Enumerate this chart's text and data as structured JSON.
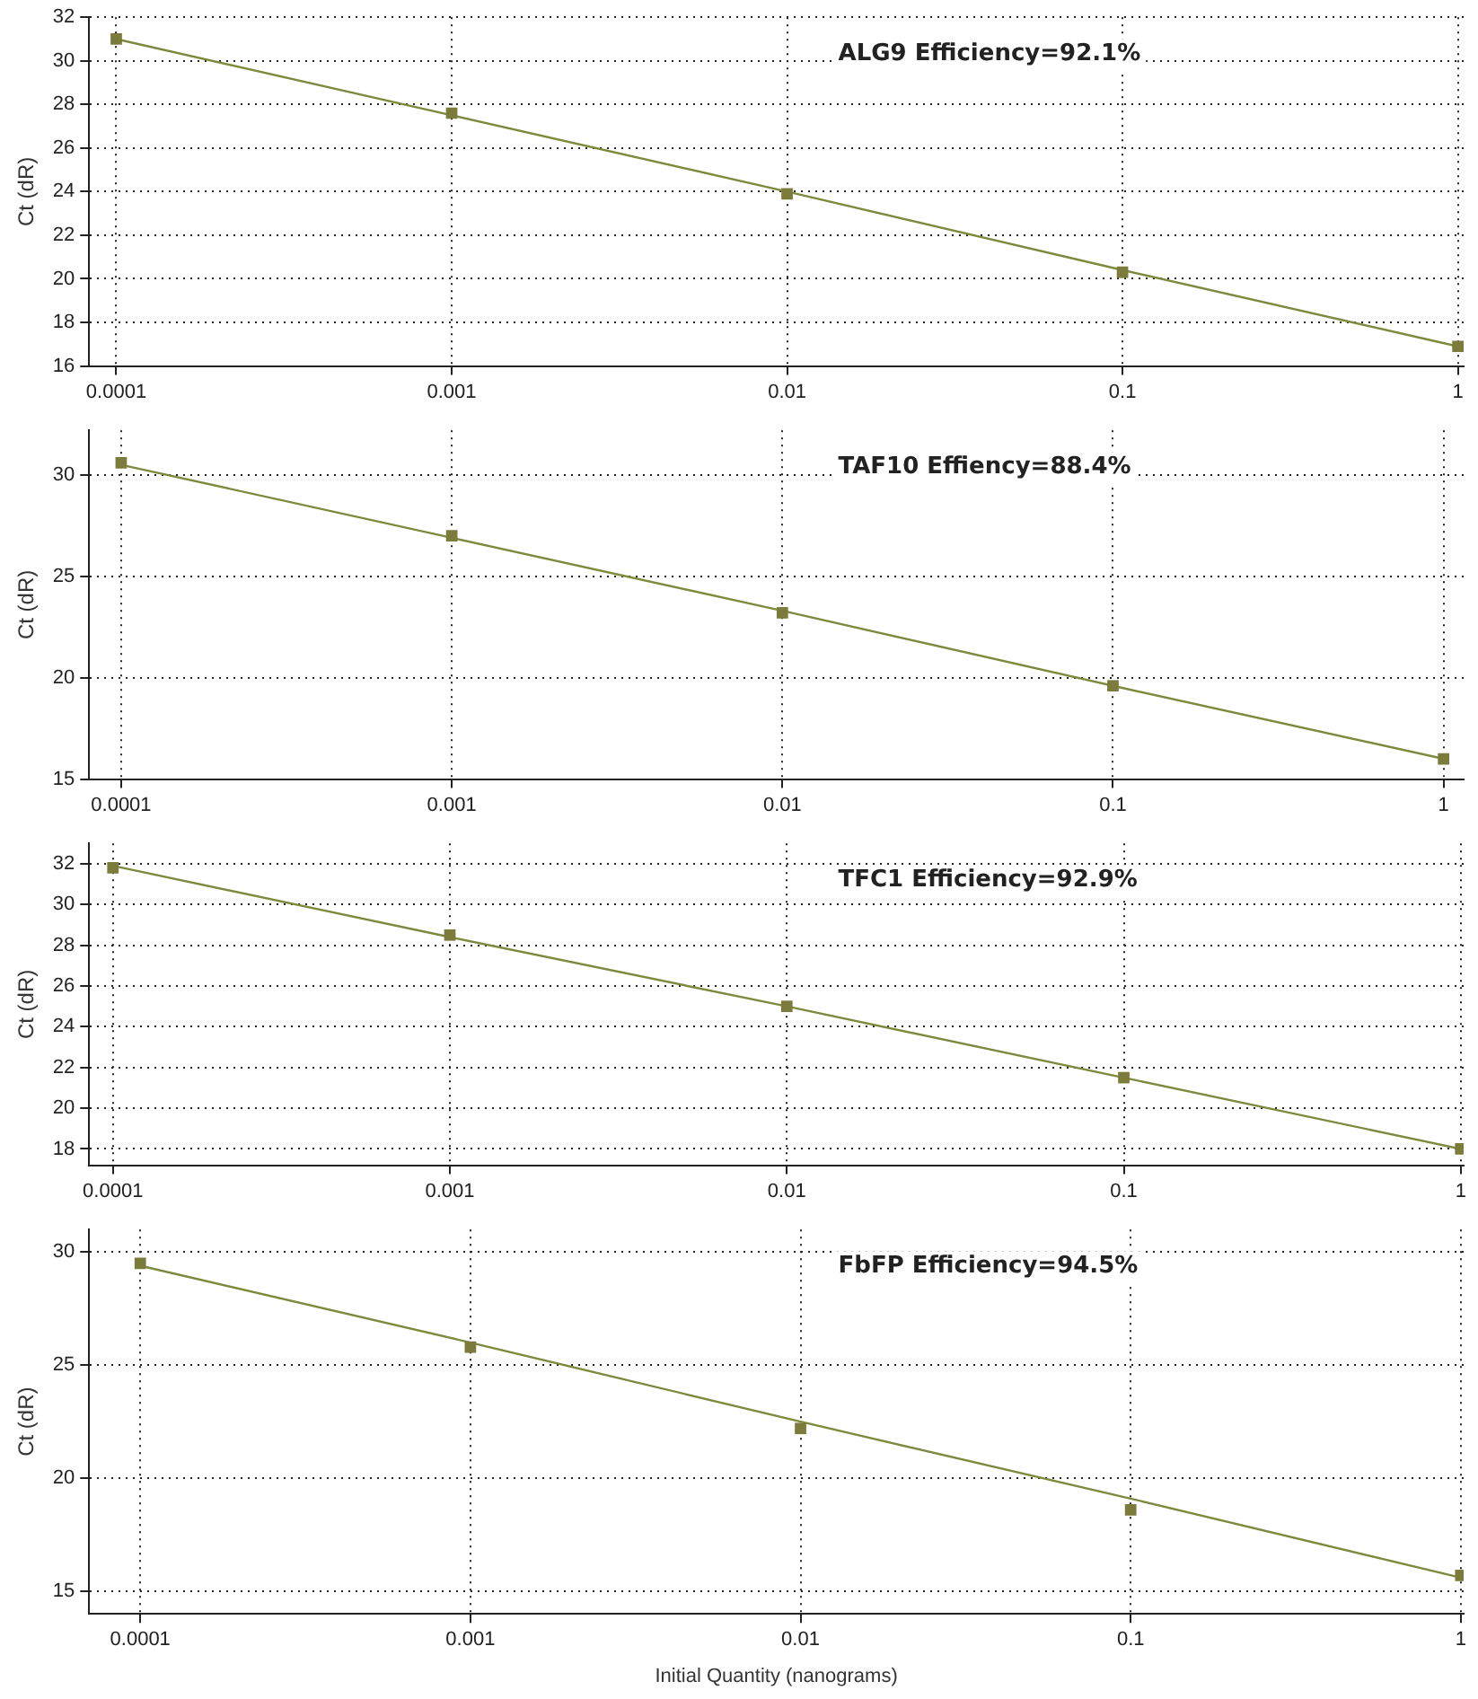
{
  "chart_data": [
    {
      "type": "scatter",
      "ylabel": "Ct (dR)",
      "annotations": [
        "ALG9 Efficiency=92.1%"
      ],
      "x": [
        0.0001,
        0.001,
        0.01,
        0.1,
        1
      ],
      "series": [
        {
          "type": "scatter",
          "color": "#7b7b3c",
          "marker": "square",
          "values": [
            31.0,
            27.6,
            23.9,
            20.3,
            16.9
          ]
        },
        {
          "type": "line",
          "color": "#7c8a3e",
          "marker": "none",
          "values": [
            31.0,
            27.5,
            24.0,
            20.4,
            16.9
          ]
        }
      ],
      "log": "x",
      "xlim": [
        8.3e-05,
        1.04
      ],
      "xticks": [
        0.0001,
        0.001,
        0.01,
        0.1,
        1
      ],
      "ylim": [
        16,
        32
      ],
      "yticks": [
        16,
        18,
        20,
        22,
        24,
        26,
        28,
        30,
        32
      ],
      "grid": true,
      "legend": false
    },
    {
      "type": "scatter",
      "ylabel": "Ct (dR)",
      "annotations": [
        "TAF10 Effiency=88.4%"
      ],
      "x": [
        0.0001,
        0.001,
        0.01,
        0.1,
        1
      ],
      "series": [
        {
          "type": "scatter",
          "color": "#7b7b3c",
          "marker": "square",
          "values": [
            30.6,
            27.0,
            23.2,
            19.6,
            16.0
          ]
        },
        {
          "type": "line",
          "color": "#7c8a3e",
          "marker": "none",
          "values": [
            30.5,
            26.9,
            23.3,
            19.6,
            16.0
          ]
        }
      ],
      "log": "x",
      "xlim": [
        8e-05,
        1.15
      ],
      "xticks": [
        0.0001,
        0.001,
        0.01,
        0.1,
        1
      ],
      "ylim": [
        15,
        32.2
      ],
      "yticks": [
        15,
        20,
        25,
        30
      ],
      "grid": true,
      "legend": false
    },
    {
      "type": "scatter",
      "ylabel": "Ct (dR)",
      "annotations": [
        "TFC1 Efficiency=92.9%"
      ],
      "x": [
        0.0001,
        0.001,
        0.01,
        0.1,
        1
      ],
      "series": [
        {
          "type": "scatter",
          "color": "#7b7b3c",
          "marker": "square",
          "values": [
            31.8,
            28.5,
            25.0,
            21.5,
            18.0
          ]
        },
        {
          "type": "line",
          "color": "#7c8a3e",
          "marker": "none",
          "values": [
            31.9,
            28.4,
            25.0,
            21.5,
            18.0
          ]
        }
      ],
      "log": "x",
      "xlim": [
        8.5e-05,
        1.02
      ],
      "xticks": [
        0.0001,
        0.001,
        0.01,
        0.1,
        1
      ],
      "ylim": [
        17.2,
        33
      ],
      "yticks": [
        18,
        20,
        22,
        24,
        26,
        28,
        30,
        32
      ],
      "grid": true,
      "legend": false
    },
    {
      "type": "scatter",
      "xlabel": "Initial Quantity (nanograms)",
      "ylabel": "Ct (dR)",
      "annotations": [
        "FbFP Efficiency=94.5%"
      ],
      "x": [
        0.0001,
        0.001,
        0.01,
        0.1,
        1
      ],
      "series": [
        {
          "type": "scatter",
          "color": "#7b7b3c",
          "marker": "square",
          "values": [
            29.5,
            25.8,
            22.2,
            18.6,
            15.7
          ]
        },
        {
          "type": "line",
          "color": "#7c8a3e",
          "marker": "none",
          "values": [
            29.4,
            26.0,
            22.5,
            19.1,
            15.6
          ]
        }
      ],
      "log": "x",
      "xlim": [
        7e-05,
        1.02
      ],
      "xticks": [
        0.0001,
        0.001,
        0.01,
        0.1,
        1
      ],
      "ylim": [
        14,
        31
      ],
      "yticks": [
        15,
        20,
        25,
        30
      ],
      "grid": true,
      "legend": false
    }
  ]
}
